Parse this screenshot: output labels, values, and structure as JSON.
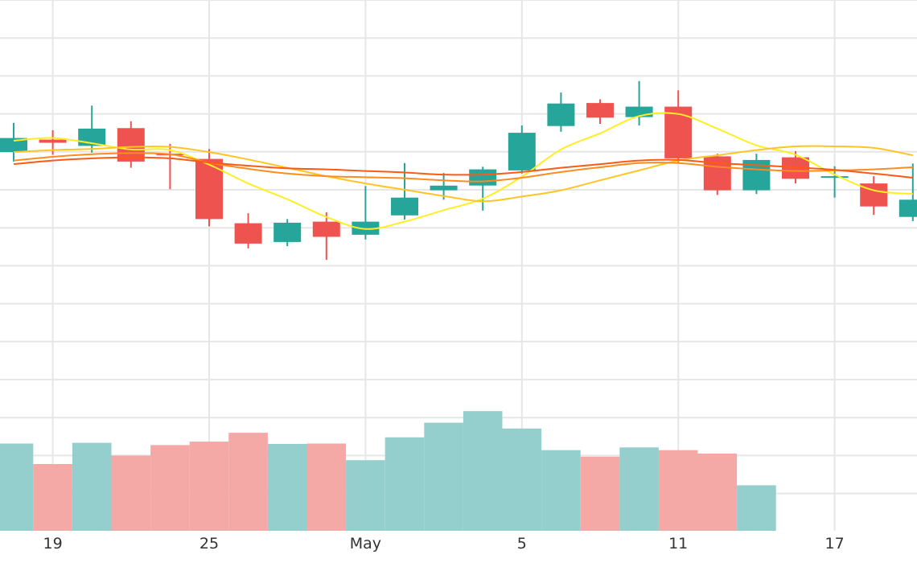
{
  "chart_data": {
    "type": "candlestick",
    "x_tick_labels": [
      {
        "label": "19",
        "day": 1
      },
      {
        "label": "25",
        "day": 5
      },
      {
        "label": "May",
        "day": 9
      },
      {
        "label": "5",
        "day": 13
      },
      {
        "label": "11",
        "day": 17
      },
      {
        "label": "17",
        "day": 21
      }
    ],
    "y_range": [
      0,
      100
    ],
    "grid": true,
    "candles": [
      {
        "day": 0,
        "open": 70.9,
        "high": 76.5,
        "low": 69.1,
        "close": 73.6
      },
      {
        "day": 1,
        "open": 73.3,
        "high": 75.1,
        "low": 70.4,
        "close": 72.7
      },
      {
        "day": 2,
        "open": 72.1,
        "high": 79.8,
        "low": 70.8,
        "close": 75.4
      },
      {
        "day": 3,
        "open": 75.5,
        "high": 76.8,
        "low": 67.9,
        "close": 69.1
      },
      {
        "day": 4,
        "open": 70.6,
        "high": 72.5,
        "low": 63.8,
        "close": 70.4
      },
      {
        "day": 5,
        "open": 69.6,
        "high": 71.5,
        "low": 56.7,
        "close": 58.1
      },
      {
        "day": 6,
        "open": 57.3,
        "high": 59.2,
        "low": 52.5,
        "close": 53.4
      },
      {
        "day": 7,
        "open": 53.7,
        "high": 58.1,
        "low": 52.9,
        "close": 57.4
      },
      {
        "day": 8,
        "open": 57.6,
        "high": 59.4,
        "low": 50.3,
        "close": 54.7
      },
      {
        "day": 9,
        "open": 55.1,
        "high": 64.4,
        "low": 54.2,
        "close": 57.6
      },
      {
        "day": 10,
        "open": 58.8,
        "high": 68.8,
        "low": 58.0,
        "close": 62.2
      },
      {
        "day": 11,
        "open": 63.6,
        "high": 66.9,
        "low": 61.8,
        "close": 64.5
      },
      {
        "day": 12,
        "open": 64.5,
        "high": 68.1,
        "low": 59.7,
        "close": 67.6
      },
      {
        "day": 13,
        "open": 67.4,
        "high": 76.0,
        "low": 66.8,
        "close": 74.6
      },
      {
        "day": 14,
        "open": 75.9,
        "high": 82.3,
        "low": 74.8,
        "close": 80.2
      },
      {
        "day": 15,
        "open": 80.3,
        "high": 81.0,
        "low": 76.3,
        "close": 77.5
      },
      {
        "day": 16,
        "open": 77.6,
        "high": 84.5,
        "low": 76.0,
        "close": 79.6
      },
      {
        "day": 17,
        "open": 79.6,
        "high": 82.7,
        "low": 68.9,
        "close": 69.7
      },
      {
        "day": 18,
        "open": 70.1,
        "high": 70.6,
        "low": 62.7,
        "close": 63.6
      },
      {
        "day": 19,
        "open": 63.6,
        "high": 70.6,
        "low": 62.9,
        "close": 69.4
      },
      {
        "day": 20,
        "open": 69.9,
        "high": 71.1,
        "low": 64.9,
        "close": 65.8
      },
      {
        "day": 21,
        "open": 66.0,
        "high": 68.2,
        "low": 62.2,
        "close": 66.3
      },
      {
        "day": 22,
        "open": 64.9,
        "high": 66.3,
        "low": 58.9,
        "close": 60.5
      },
      {
        "day": 23,
        "open": 58.5,
        "high": 68.7,
        "low": 57.7,
        "close": 61.8
      }
    ],
    "moving_averages": [
      {
        "color": "#ffee22",
        "values": [
          {
            "day": 0,
            "y": 73.1
          },
          {
            "day": 1,
            "y": 73.6
          },
          {
            "day": 2,
            "y": 72.6
          },
          {
            "day": 3,
            "y": 71.4
          },
          {
            "day": 4,
            "y": 71.3
          },
          {
            "day": 5,
            "y": 68.5
          },
          {
            "day": 6,
            "y": 64.9
          },
          {
            "day": 7,
            "y": 61.9
          },
          {
            "day": 8,
            "y": 58.5
          },
          {
            "day": 9,
            "y": 56.2
          },
          {
            "day": 10,
            "y": 57.6
          },
          {
            "day": 11,
            "y": 59.8
          },
          {
            "day": 12,
            "y": 62.0
          },
          {
            "day": 13,
            "y": 66.2
          },
          {
            "day": 14,
            "y": 71.4
          },
          {
            "day": 15,
            "y": 74.5
          },
          {
            "day": 16,
            "y": 77.8
          },
          {
            "day": 17,
            "y": 78.2
          },
          {
            "day": 18,
            "y": 75.4
          },
          {
            "day": 19,
            "y": 72.2
          },
          {
            "day": 20,
            "y": 70.4
          },
          {
            "day": 21,
            "y": 66.6
          },
          {
            "day": 22,
            "y": 63.6
          },
          {
            "day": 23,
            "y": 62.9
          }
        ]
      },
      {
        "color": "#ffc425",
        "values": [
          {
            "day": 0,
            "y": 70.9
          },
          {
            "day": 1,
            "y": 71.3
          },
          {
            "day": 2,
            "y": 71.5
          },
          {
            "day": 3,
            "y": 71.9
          },
          {
            "day": 4,
            "y": 71.9
          },
          {
            "day": 5,
            "y": 70.9
          },
          {
            "day": 6,
            "y": 69.5
          },
          {
            "day": 7,
            "y": 67.9
          },
          {
            "day": 8,
            "y": 66.3
          },
          {
            "day": 9,
            "y": 64.9
          },
          {
            "day": 10,
            "y": 63.7
          },
          {
            "day": 11,
            "y": 62.5
          },
          {
            "day": 12,
            "y": 61.5
          },
          {
            "day": 13,
            "y": 62.4
          },
          {
            "day": 14,
            "y": 63.6
          },
          {
            "day": 15,
            "y": 65.5
          },
          {
            "day": 16,
            "y": 67.4
          },
          {
            "day": 17,
            "y": 69.3
          },
          {
            "day": 18,
            "y": 70.3
          },
          {
            "day": 19,
            "y": 71.3
          },
          {
            "day": 20,
            "y": 72.0
          },
          {
            "day": 21,
            "y": 72.0
          },
          {
            "day": 22,
            "y": 71.7
          },
          {
            "day": 23,
            "y": 70.3
          }
        ]
      },
      {
        "color": "#ff8c1e",
        "values": [
          {
            "day": 0,
            "y": 69.3
          },
          {
            "day": 1,
            "y": 70.0
          },
          {
            "day": 2,
            "y": 70.5
          },
          {
            "day": 3,
            "y": 70.7
          },
          {
            "day": 4,
            "y": 70.5
          },
          {
            "day": 5,
            "y": 68.9
          },
          {
            "day": 6,
            "y": 67.7
          },
          {
            "day": 7,
            "y": 66.8
          },
          {
            "day": 8,
            "y": 66.3
          },
          {
            "day": 9,
            "y": 66.1
          },
          {
            "day": 10,
            "y": 65.9
          },
          {
            "day": 11,
            "y": 65.5
          },
          {
            "day": 12,
            "y": 65.3
          },
          {
            "day": 13,
            "y": 66.0
          },
          {
            "day": 14,
            "y": 67.1
          },
          {
            "day": 15,
            "y": 68.0
          },
          {
            "day": 16,
            "y": 68.8
          },
          {
            "day": 17,
            "y": 68.8
          },
          {
            "day": 18,
            "y": 68.1
          },
          {
            "day": 19,
            "y": 67.6
          },
          {
            "day": 20,
            "y": 67.3
          },
          {
            "day": 21,
            "y": 67.4
          },
          {
            "day": 22,
            "y": 67.6
          },
          {
            "day": 23,
            "y": 68.0
          }
        ]
      },
      {
        "color": "#ff5a14",
        "values": [
          {
            "day": 0,
            "y": 68.6
          },
          {
            "day": 1,
            "y": 69.3
          },
          {
            "day": 2,
            "y": 69.7
          },
          {
            "day": 3,
            "y": 69.9
          },
          {
            "day": 4,
            "y": 69.7
          },
          {
            "day": 5,
            "y": 68.9
          },
          {
            "day": 6,
            "y": 68.3
          },
          {
            "day": 7,
            "y": 67.8
          },
          {
            "day": 8,
            "y": 67.6
          },
          {
            "day": 9,
            "y": 67.3
          },
          {
            "day": 10,
            "y": 67.0
          },
          {
            "day": 11,
            "y": 66.6
          },
          {
            "day": 12,
            "y": 66.6
          },
          {
            "day": 13,
            "y": 67.1
          },
          {
            "day": 14,
            "y": 67.9
          },
          {
            "day": 15,
            "y": 68.6
          },
          {
            "day": 16,
            "y": 69.3
          },
          {
            "day": 17,
            "y": 69.4
          },
          {
            "day": 18,
            "y": 68.8
          },
          {
            "day": 19,
            "y": 68.4
          },
          {
            "day": 20,
            "y": 68.0
          },
          {
            "day": 21,
            "y": 67.5
          },
          {
            "day": 22,
            "y": 66.8
          },
          {
            "day": 23,
            "y": 66.0
          }
        ]
      }
    ],
    "volume": [
      {
        "day": 0,
        "value": 22.6,
        "direction": "up"
      },
      {
        "day": 1,
        "value": 17.3,
        "direction": "down"
      },
      {
        "day": 2,
        "value": 22.8,
        "direction": "up"
      },
      {
        "day": 3,
        "value": 19.5,
        "direction": "down"
      },
      {
        "day": 4,
        "value": 22.2,
        "direction": "down"
      },
      {
        "day": 5,
        "value": 23.1,
        "direction": "down"
      },
      {
        "day": 6,
        "value": 25.4,
        "direction": "down"
      },
      {
        "day": 7,
        "value": 22.5,
        "direction": "up"
      },
      {
        "day": 8,
        "value": 22.6,
        "direction": "down"
      },
      {
        "day": 9,
        "value": 18.3,
        "direction": "up"
      },
      {
        "day": 10,
        "value": 24.2,
        "direction": "up"
      },
      {
        "day": 11,
        "value": 28.0,
        "direction": "up"
      },
      {
        "day": 12,
        "value": 31.0,
        "direction": "up"
      },
      {
        "day": 13,
        "value": 26.5,
        "direction": "up"
      },
      {
        "day": 14,
        "value": 20.9,
        "direction": "up"
      },
      {
        "day": 15,
        "value": 19.2,
        "direction": "down"
      },
      {
        "day": 16,
        "value": 21.6,
        "direction": "up"
      },
      {
        "day": 17,
        "value": 20.9,
        "direction": "down"
      },
      {
        "day": 18,
        "value": 20.0,
        "direction": "down"
      },
      {
        "day": 19,
        "value": 11.8,
        "direction": "up"
      }
    ],
    "colors": {
      "up": "#26a69a",
      "down": "#ef5350",
      "volume_up": "#95cfcd",
      "volume_down": "#f5a9a7",
      "grid": "#e6e6e6",
      "tick_text": "#333333"
    }
  }
}
